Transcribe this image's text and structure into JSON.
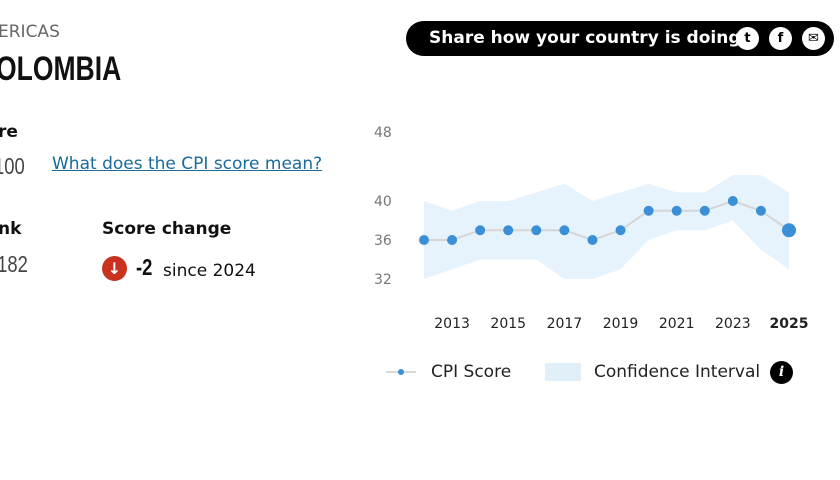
{
  "region": "ERICAS",
  "country": "OLOMBIA",
  "score": {
    "label": "re",
    "value": "100",
    "link": "What does the CPI score mean?"
  },
  "rank": {
    "label": "nk",
    "value": "/182"
  },
  "score_change": {
    "label": "Score change",
    "value": "-2",
    "since": "since 2024",
    "direction": "down",
    "icon": "arrow-down-icon",
    "color": "#c8321e"
  },
  "share": {
    "label": "Share how your country is doing",
    "icons": [
      "twitter-icon",
      "facebook-icon",
      "email-icon"
    ]
  },
  "legend": {
    "score": "CPI Score",
    "ci": "Confidence Interval",
    "info_icon": "info-icon"
  },
  "chart_data": {
    "type": "line",
    "x": [
      2012,
      2013,
      2014,
      2015,
      2016,
      2017,
      2018,
      2019,
      2020,
      2021,
      2022,
      2023,
      2024,
      2025
    ],
    "x_tick_labels": [
      "2013",
      "2015",
      "2017",
      "2019",
      "2021",
      "2023",
      "2025"
    ],
    "y_tick_labels": [
      "48",
      "40",
      "36",
      "32"
    ],
    "series": [
      {
        "name": "CPI Score",
        "values": [
          36,
          36,
          37,
          37,
          37,
          37,
          36,
          37,
          39,
          39,
          39,
          40,
          39,
          37
        ],
        "color": "#3a8fd6"
      },
      {
        "name": "Confidence Interval",
        "type": "band",
        "lower": [
          32,
          33,
          34,
          34,
          34,
          32,
          32,
          33,
          36,
          37,
          37,
          38,
          35,
          33
        ],
        "upper": [
          40,
          39,
          40,
          40,
          41,
          42,
          40,
          41,
          42,
          41,
          41,
          43,
          43,
          41
        ],
        "color": "#e6f2fc"
      }
    ],
    "grid": false,
    "legend": "bottom"
  }
}
